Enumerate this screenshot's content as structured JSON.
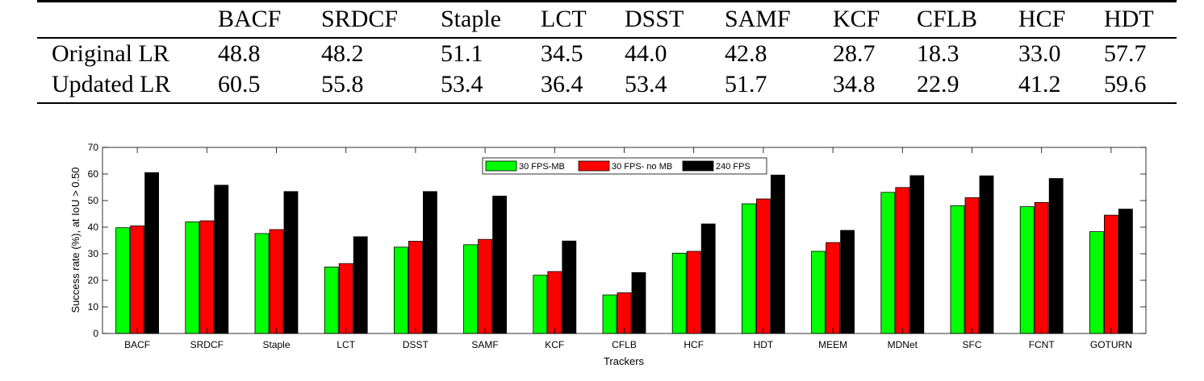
{
  "table": {
    "headers": [
      "BACF",
      "SRDCF",
      "Staple",
      "LCT",
      "DSST",
      "SAMF",
      "KCF",
      "CFLB",
      "HCF",
      "HDT"
    ],
    "rows": [
      {
        "label": "Original LR",
        "values": [
          "48.8",
          "48.2",
          "51.1",
          "34.5",
          "44.0",
          "42.8",
          "28.7",
          "18.3",
          "33.0",
          "57.7"
        ]
      },
      {
        "label": "Updated LR",
        "values": [
          "60.5",
          "55.8",
          "53.4",
          "36.4",
          "53.4",
          "51.7",
          "34.8",
          "22.9",
          "41.2",
          "59.6"
        ]
      }
    ]
  },
  "chart_data": {
    "type": "bar",
    "categories": [
      "BACF",
      "SRDCF",
      "Staple",
      "LCT",
      "DSST",
      "SAMF",
      "KCF",
      "CFLB",
      "HCF",
      "HDT",
      "MEEM",
      "MDNet",
      "SFC",
      "FCNT",
      "GOTURN"
    ],
    "series": [
      {
        "name": "30 FPS-MB",
        "color": "#00ff00",
        "values": [
          39.8,
          42.0,
          37.6,
          25.0,
          32.5,
          33.4,
          21.9,
          14.5,
          30.2,
          48.8,
          30.9,
          53.1,
          48.1,
          47.7,
          38.3
        ]
      },
      {
        "name": "30 FPS- no MB",
        "color": "#ff0000",
        "values": [
          40.5,
          42.4,
          39.1,
          26.3,
          34.7,
          35.4,
          23.3,
          15.3,
          30.9,
          50.6,
          34.2,
          54.9,
          51.1,
          49.3,
          44.5
        ]
      },
      {
        "name": "240 FPS",
        "color": "#000000",
        "values": [
          60.5,
          55.8,
          53.4,
          36.4,
          53.4,
          51.7,
          34.8,
          22.9,
          41.2,
          59.6,
          38.8,
          59.4,
          59.3,
          58.3,
          46.8
        ]
      }
    ],
    "xlabel": "Trackers",
    "ylabel": "Success rate (%), at IoU > 0.50",
    "ylim": [
      0,
      70
    ],
    "yticks": [
      0,
      10,
      20,
      30,
      40,
      50,
      60,
      70
    ],
    "legend_position": "top-center",
    "grid": false
  }
}
